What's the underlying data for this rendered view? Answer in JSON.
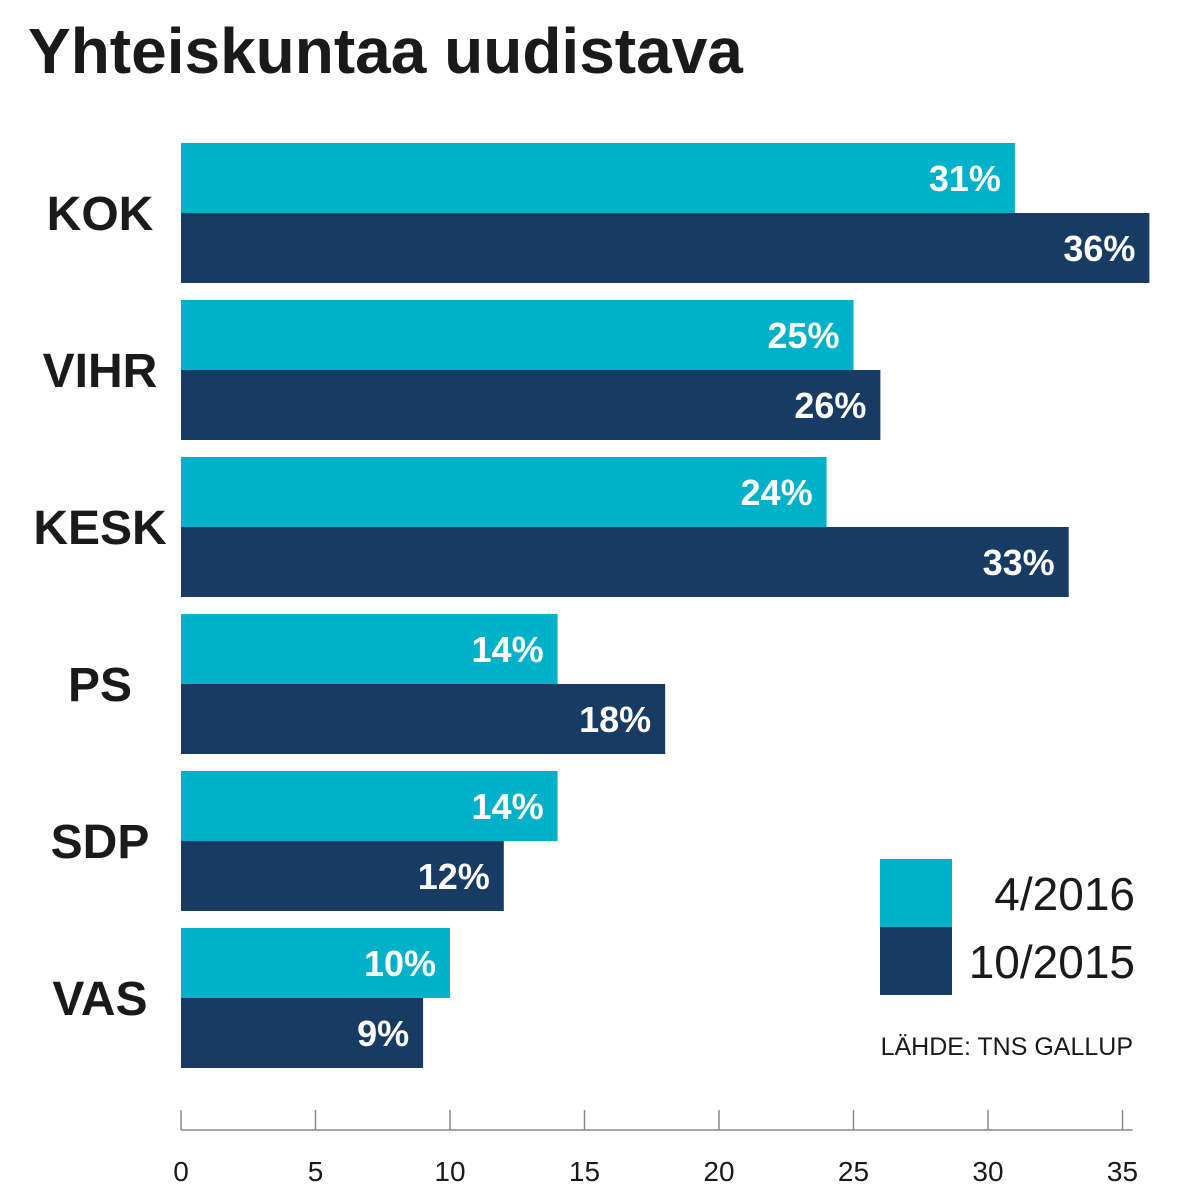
{
  "colors": {
    "series_2016": "#00B1CA",
    "series_2015": "#173B63",
    "text": "#1a1a1a",
    "axis": "#888888"
  },
  "chart_data": {
    "type": "bar",
    "orientation": "horizontal",
    "title": "Yhteiskuntaa uudistava",
    "categories": [
      "KOK",
      "VIHR",
      "KESK",
      "PS",
      "SDP",
      "VAS"
    ],
    "series": [
      {
        "name": "4/2016",
        "values": [
          31,
          25,
          24,
          14,
          14,
          10
        ],
        "labels": [
          "31%",
          "25%",
          "24%",
          "14%",
          "14%",
          "10%"
        ]
      },
      {
        "name": "10/2015",
        "values": [
          36,
          26,
          33,
          18,
          12,
          9
        ],
        "labels": [
          "36%",
          "26%",
          "33%",
          "18%",
          "12%",
          "9%"
        ]
      }
    ],
    "xlim": [
      0,
      35
    ],
    "xticks": [
      0,
      5,
      10,
      15,
      20,
      25,
      30,
      35
    ],
    "xlabel": "",
    "ylabel": "",
    "grid": false,
    "legend_position": "bottom-right",
    "source": "LÄHDE: TNS GALLUP"
  }
}
